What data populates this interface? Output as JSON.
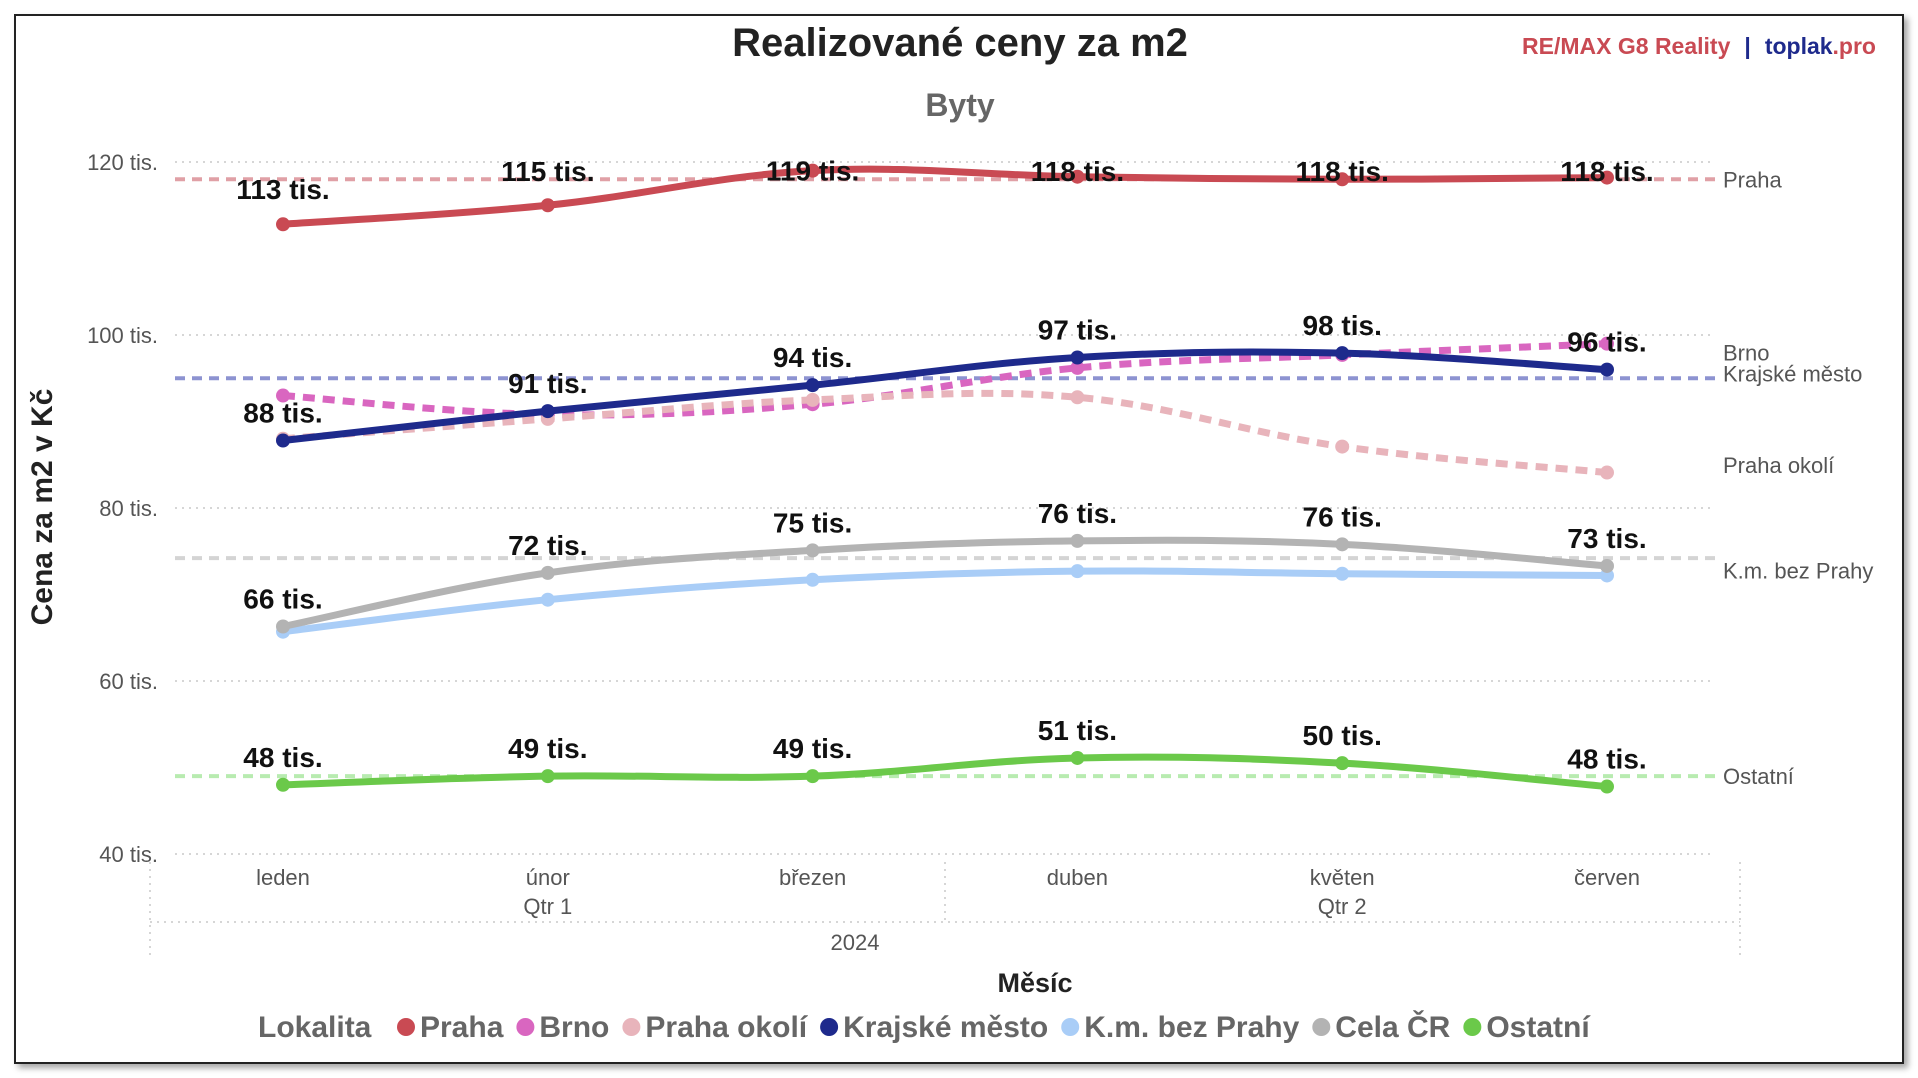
{
  "header": {
    "title": "Realizované ceny za m2",
    "subtitle": "Byty",
    "brand_re": "RE",
    "brand_max": "/MAX G8 Reality",
    "brand_sep": "|",
    "brand_toplak": "toplak",
    "brand_pro": ".pro"
  },
  "colors": {
    "brand_red": "#c94a53",
    "brand_navy": "#1e2a8c",
    "grid": "#bdbdbd"
  },
  "chart_data": {
    "type": "line",
    "title": "Realizované ceny za m2",
    "subtitle": "Byty",
    "xlabel": "Měsíc",
    "ylabel": "Cena za m2 v Kč",
    "ylim": [
      40000,
      120000
    ],
    "yticks": [
      {
        "value": 40000,
        "label": "40 tis."
      },
      {
        "value": 60000,
        "label": "60 tis."
      },
      {
        "value": 80000,
        "label": "80 tis."
      },
      {
        "value": 100000,
        "label": "100 tis."
      },
      {
        "value": 120000,
        "label": "120 tis."
      }
    ],
    "categories": [
      "leden",
      "únor",
      "březen",
      "duben",
      "květen",
      "červen"
    ],
    "quarters": [
      {
        "label": "Qtr 1",
        "under": "únor"
      },
      {
        "label": "Qtr 2",
        "under": "květen"
      }
    ],
    "year": "2024",
    "legend_title": "Lokalita",
    "legend_position": "bottom",
    "grid": true,
    "series": [
      {
        "name": "Praha",
        "color": "#c94a53",
        "dashed": false,
        "values": [
          112800,
          115000,
          119000,
          118300,
          118000,
          118200
        ],
        "labels": [
          "113 tis.",
          "115 tis.",
          "119 tis.",
          "118 tis.",
          "118 tis.",
          "118 tis."
        ],
        "average": 118000
      },
      {
        "name": "Brno",
        "color": "#d966c0",
        "dashed": true,
        "values": [
          93000,
          90800,
          92000,
          96200,
          97700,
          99000
        ]
      },
      {
        "name": "Praha okolí",
        "color": "#e8b4bb",
        "dashed": true,
        "values": [
          88000,
          90300,
          92500,
          92800,
          87100,
          84100
        ]
      },
      {
        "name": "Krajské město",
        "color": "#1e2a8c",
        "dashed": false,
        "values": [
          87800,
          91200,
          94200,
          97400,
          97900,
          96000
        ],
        "labels": [
          "88 tis.",
          "91 tis.",
          "94 tis.",
          "97 tis.",
          "98 tis.",
          "96 tis."
        ],
        "average": 95000
      },
      {
        "name": "K.m. bez Prahy",
        "color": "#a9cdf7",
        "dashed": false,
        "values": [
          65700,
          69400,
          71700,
          72700,
          72400,
          72200
        ]
      },
      {
        "name": "Cela ČR",
        "color": "#b3b3b3",
        "dashed": false,
        "values": [
          66300,
          72500,
          75100,
          76200,
          75800,
          73300
        ],
        "labels": [
          "66 tis.",
          "72 tis.",
          "75 tis.",
          "76 tis.",
          "76 tis.",
          "73 tis."
        ],
        "average": 74200
      },
      {
        "name": "Ostatní",
        "color": "#6bc94a",
        "dashed": false,
        "values": [
          48000,
          49000,
          49000,
          51100,
          50500,
          47800
        ],
        "labels": [
          "48 tis.",
          "49 tis.",
          "49 tis.",
          "51 tis.",
          "50 tis.",
          "48 tis."
        ],
        "average": 49000
      }
    ],
    "average_lines": [
      {
        "series": "Praha",
        "color": "#e0a0a6",
        "value": 118000
      },
      {
        "series": "Krajské město",
        "color": "#8d93d1",
        "value": 95000
      },
      {
        "series": "Cela ČR",
        "color": "#d4d4d4",
        "value": 74200
      },
      {
        "series": "Ostatní",
        "color": "#b8ebb0",
        "value": 49000
      }
    ],
    "end_labels": [
      {
        "text": "Praha",
        "value": 118000
      },
      {
        "text": "Brno",
        "value": 98000
      },
      {
        "text": "Krajské město",
        "value": 95000
      },
      {
        "text": "Praha okolí",
        "value": 85000
      },
      {
        "text": "K.m. bez Prahy",
        "value": 72800
      },
      {
        "text": "Ostatní",
        "value": 49000
      }
    ]
  }
}
